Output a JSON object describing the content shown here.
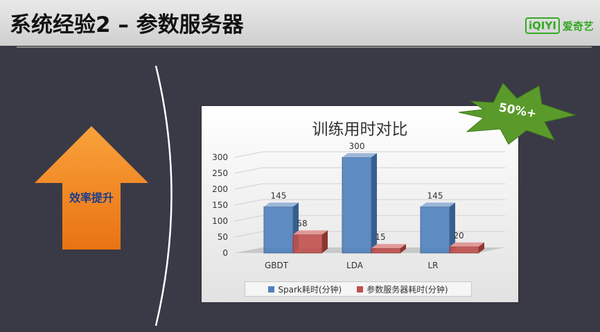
{
  "slide": {
    "title": "系统经验2 – 参数服务器",
    "brand_logo": "iQIYI",
    "brand_text": "爱奇艺",
    "arrow_label": "效率提升",
    "callout": "50%+"
  },
  "colors": {
    "spark": "#4f81bd",
    "ps": "#c0504d",
    "arrow": "#f28a20",
    "burst": "#5a9a2a",
    "brand": "#33aa22"
  },
  "chart_data": {
    "type": "bar",
    "title": "训练用时对比",
    "categories": [
      "GBDT",
      "LDA",
      "LR"
    ],
    "series": [
      {
        "name": "Spark耗时(分钟)",
        "values": [
          145,
          300,
          145
        ]
      },
      {
        "name": "参数服务器耗时(分钟)",
        "values": [
          58,
          15,
          20
        ]
      }
    ],
    "y_ticks": [
      0,
      50,
      100,
      150,
      200,
      250,
      300
    ],
    "ylim": [
      0,
      300
    ],
    "xlabel": "",
    "ylabel": "",
    "legend_position": "bottom",
    "grid": true
  }
}
